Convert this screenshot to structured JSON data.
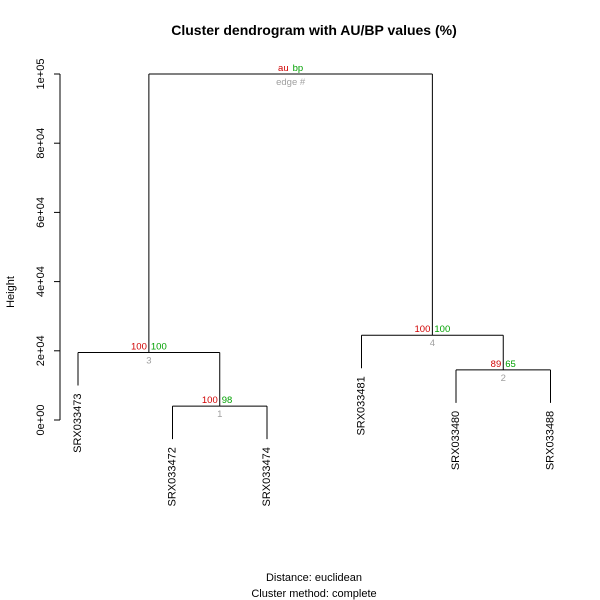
{
  "chart_data": {
    "type": "dendrogram",
    "title": "Cluster dendrogram with AU/BP values (%)",
    "ylabel": "Height",
    "ylim": [
      0,
      100000
    ],
    "yticks": [
      {
        "value": 0,
        "label": "0e+00"
      },
      {
        "value": 20000,
        "label": "2e+04"
      },
      {
        "value": 40000,
        "label": "4e+04"
      },
      {
        "value": 60000,
        "label": "6e+04"
      },
      {
        "value": 80000,
        "label": "8e+04"
      },
      {
        "value": 100000,
        "label": "1e+05"
      }
    ],
    "leaves": [
      "SRX033473",
      "SRX033472",
      "SRX033474",
      "SRX033481",
      "SRX033480",
      "SRX033488"
    ],
    "merges": [
      {
        "id": 1,
        "left": "SRX033472",
        "right": "SRX033474",
        "height": 4000,
        "au": "100",
        "bp": "98",
        "edge": "1"
      },
      {
        "id": 2,
        "left": "SRX033480",
        "right": "SRX033488",
        "height": 14500,
        "au": "89",
        "bp": "65",
        "edge": "2"
      },
      {
        "id": 3,
        "left": "SRX033473",
        "right": "node1",
        "height": 19500,
        "au": "100",
        "bp": "100",
        "edge": "3"
      },
      {
        "id": 4,
        "left": "SRX033481",
        "right": "node2",
        "height": 24500,
        "au": "100",
        "bp": "100",
        "edge": "4"
      },
      {
        "id": 5,
        "left": "node3",
        "right": "node4",
        "height": 100000,
        "au": "au",
        "bp": "bp",
        "edge": "edge #"
      }
    ],
    "footer_distance": "Distance:  euclidean",
    "footer_method": "Cluster method: complete"
  },
  "colors": {
    "au": "#d00000",
    "bp": "#00a000",
    "edge": "#a0a0a0",
    "line": "#000000"
  }
}
